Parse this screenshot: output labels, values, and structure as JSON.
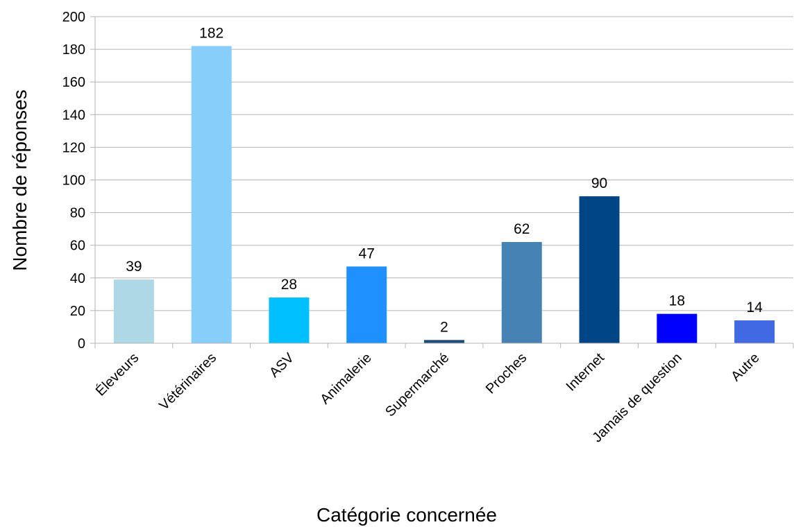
{
  "chart_data": {
    "type": "bar",
    "title": "",
    "xlabel": "Catégorie concernée",
    "ylabel": "Nombre de réponses",
    "categories": [
      "Éleveurs",
      "Vétérinaires",
      "ASV",
      "Animalerie",
      "Supermarché",
      "Proches",
      "Internet",
      "Jamais de question",
      "Autre"
    ],
    "values": [
      39,
      182,
      28,
      47,
      2,
      62,
      90,
      18,
      14
    ],
    "colors": [
      "#add8e6",
      "#87cefa",
      "#00bfff",
      "#1e90ff",
      "#1f4e79",
      "#4682b4",
      "#004586",
      "#0000ff",
      "#4169e1"
    ],
    "ylim": [
      0,
      200
    ],
    "yticks": [
      0,
      20,
      40,
      60,
      80,
      100,
      120,
      140,
      160,
      180,
      200
    ],
    "grid": true,
    "gridColor": "#b3b3b3",
    "legend": "none",
    "data_labels": true
  }
}
